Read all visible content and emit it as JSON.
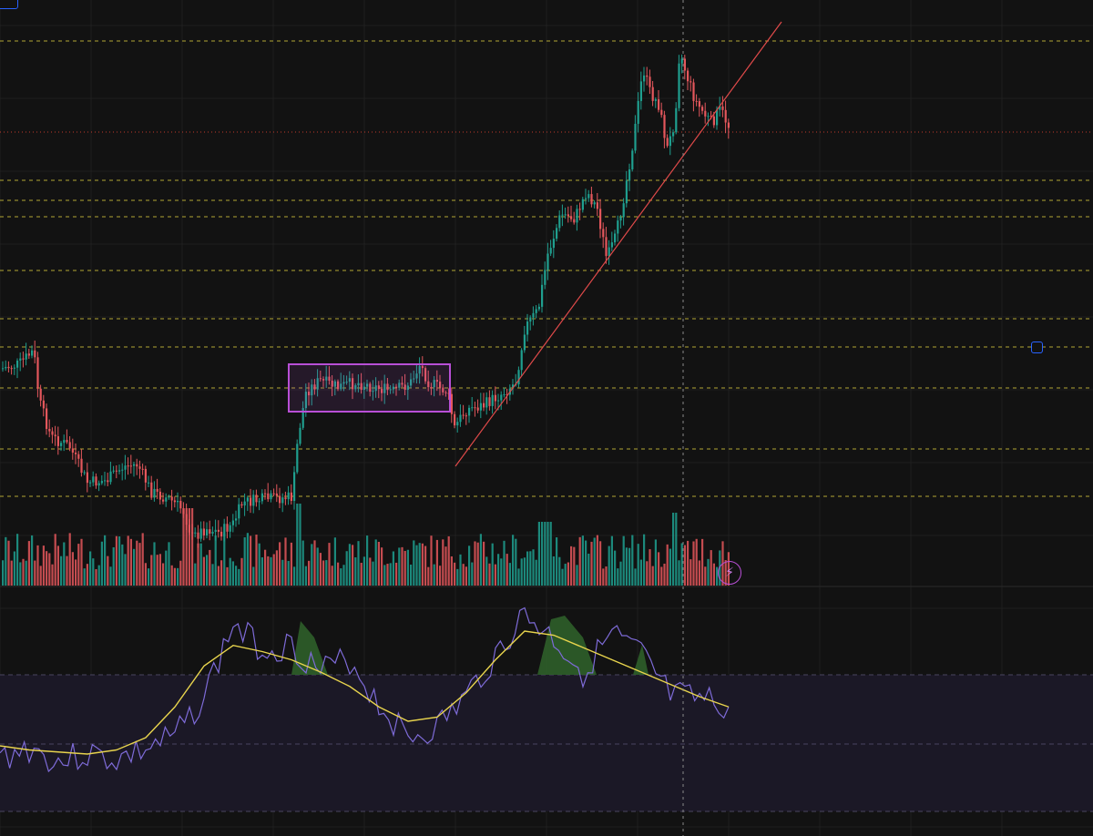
{
  "colors": {
    "background": "#121212",
    "grid": "#1f1f1f",
    "bull": "#1f9f8f",
    "bear": "#e4575c",
    "level_line": "#cfc23a",
    "trendline": "#e04a4a",
    "last_price_line": "#c0392b",
    "range_box": "#b84fd6",
    "oscillator": "#7e6bd8",
    "signal": "#e8d44d",
    "osc_band": "#1b1826",
    "osc_fill": "#2f5f2a",
    "crosshair": "#8a8a8a"
  },
  "icons": {
    "top_left_button": "panel-button-icon",
    "anchor_handle": "drawing-anchor-icon",
    "alert": "lightning-bolt-icon"
  },
  "alert_glyph": "⚡",
  "indicators": {
    "oscillator_band_levels": [
      "upper",
      "middle",
      "lower"
    ]
  },
  "chart_data": {
    "type": "candlestick",
    "title": "",
    "xlabel": "",
    "ylabel": "",
    "panes": [
      "price",
      "volume",
      "oscillator"
    ],
    "price_close_series": [
      100,
      96,
      88,
      80,
      78,
      82,
      86,
      84,
      79,
      82,
      108,
      112,
      110,
      111,
      113,
      115,
      111,
      110,
      105,
      104,
      108,
      114,
      128,
      138,
      152,
      160,
      170,
      162,
      160,
      168,
      182,
      196,
      190,
      205,
      194,
      187
    ],
    "oscillator_series": [
      30,
      35,
      28,
      32,
      29,
      34,
      40,
      60,
      95,
      83,
      85,
      72,
      78,
      56,
      40,
      45,
      60,
      80,
      100,
      88,
      72,
      90,
      80,
      60,
      58,
      55
    ],
    "signal_series": [
      36,
      34,
      33,
      32,
      34,
      40,
      55,
      75,
      85,
      82,
      78,
      72,
      65,
      55,
      48,
      50,
      62,
      78,
      92,
      90,
      84,
      78,
      72,
      66,
      60,
      55
    ],
    "grid": true,
    "legend": "none"
  }
}
